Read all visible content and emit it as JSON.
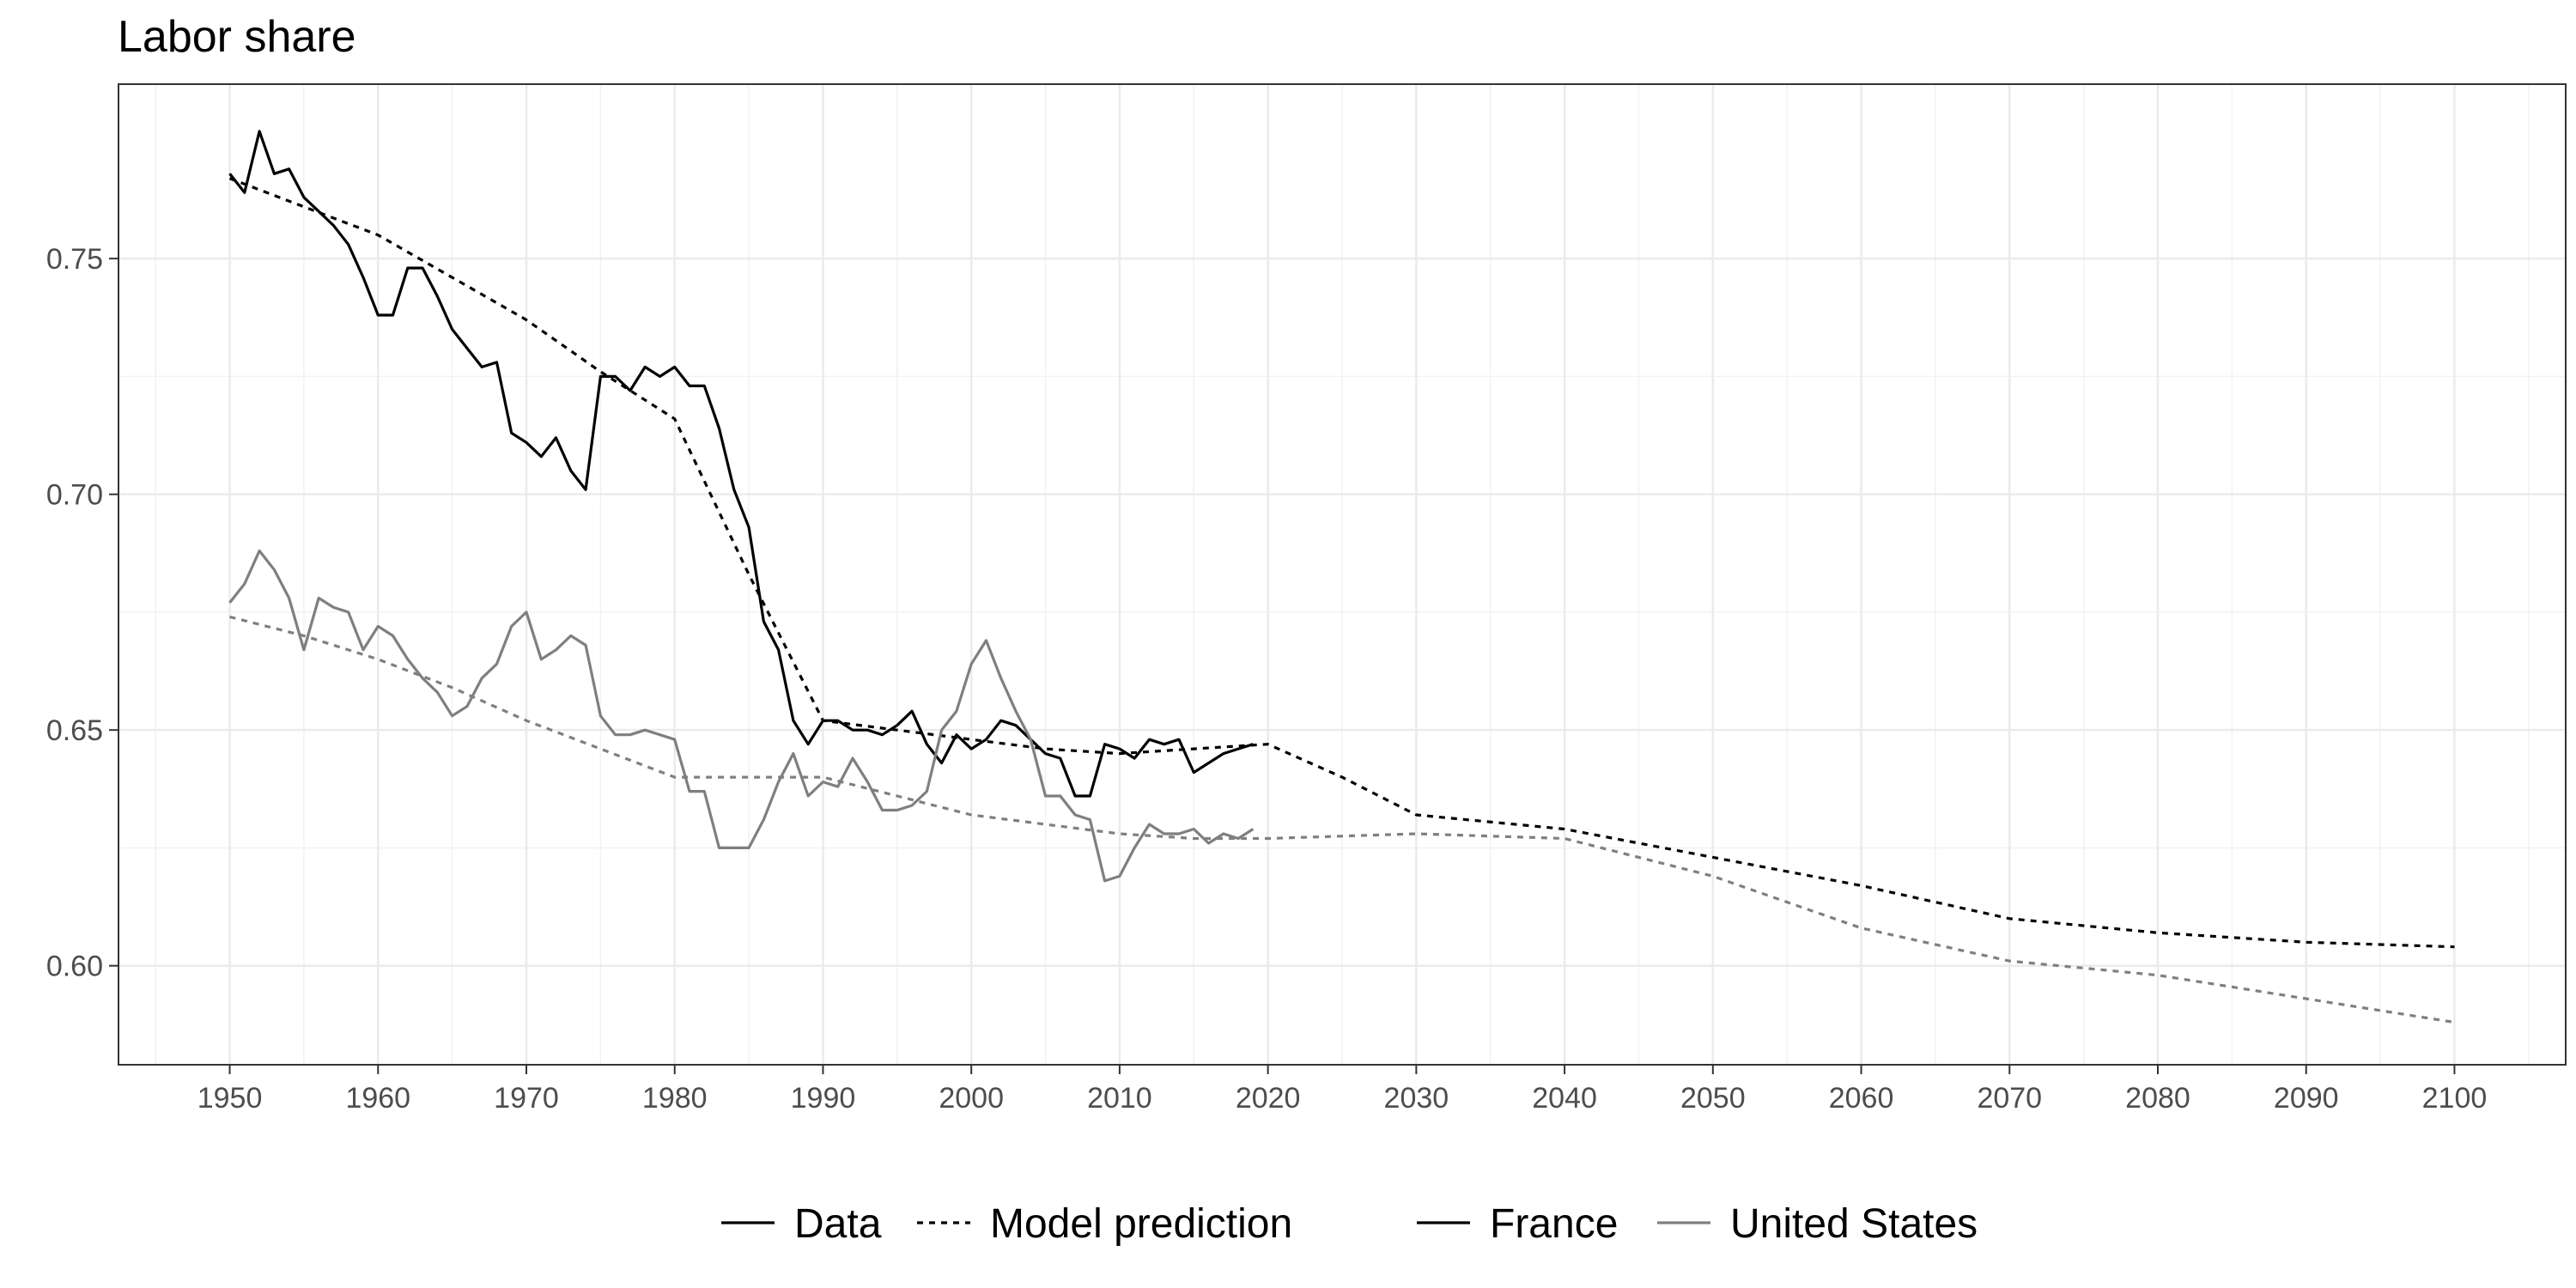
{
  "chart_data": {
    "type": "line",
    "title": "Labor share",
    "xlabel": "",
    "ylabel": "",
    "xlim": [
      1942.5,
      2107.5
    ],
    "ylim": [
      0.579,
      0.787
    ],
    "x_ticks": [
      1950,
      1960,
      1970,
      1980,
      1990,
      2000,
      2010,
      2020,
      2030,
      2040,
      2050,
      2060,
      2070,
      2080,
      2090,
      2100
    ],
    "y_ticks": [
      0.6,
      0.65,
      0.7,
      0.75
    ],
    "y_tick_labels": [
      "0.60",
      "0.65",
      "0.70",
      "0.75"
    ],
    "grid": true,
    "legend_position": "bottom",
    "legend": {
      "linetype": [
        {
          "label": "Data",
          "dash": "solid"
        },
        {
          "label": "Model prediction",
          "dash": "dotted"
        }
      ],
      "country": [
        {
          "label": "France",
          "color": "#000000"
        },
        {
          "label": "United States",
          "color": "#7f7f7f"
        }
      ]
    },
    "colors": {
      "France": "#000000",
      "United States": "#7f7f7f"
    },
    "series": [
      {
        "name": "France",
        "kind": "Data",
        "x": [
          1950,
          1951,
          1952,
          1953,
          1954,
          1955,
          1956,
          1957,
          1958,
          1959,
          1960,
          1961,
          1962,
          1963,
          1964,
          1965,
          1966,
          1967,
          1968,
          1969,
          1970,
          1971,
          1972,
          1973,
          1974,
          1975,
          1976,
          1977,
          1978,
          1979,
          1980,
          1981,
          1982,
          1983,
          1984,
          1985,
          1986,
          1987,
          1988,
          1989,
          1990,
          1991,
          1992,
          1993,
          1994,
          1995,
          1996,
          1997,
          1998,
          1999,
          2000,
          2001,
          2002,
          2003,
          2004,
          2005,
          2006,
          2007,
          2008,
          2009,
          2010,
          2011,
          2012,
          2013,
          2014,
          2015,
          2016,
          2017,
          2018,
          2019
        ],
        "y": [
          0.768,
          0.764,
          0.777,
          0.768,
          0.769,
          0.763,
          0.76,
          0.757,
          0.753,
          0.746,
          0.738,
          0.738,
          0.748,
          0.748,
          0.742,
          0.735,
          0.731,
          0.727,
          0.728,
          0.713,
          0.711,
          0.708,
          0.712,
          0.705,
          0.701,
          0.725,
          0.725,
          0.722,
          0.727,
          0.725,
          0.727,
          0.723,
          0.723,
          0.714,
          0.701,
          0.693,
          0.673,
          0.667,
          0.652,
          0.647,
          0.652,
          0.652,
          0.65,
          0.65,
          0.649,
          0.651,
          0.654,
          0.647,
          0.643,
          0.649,
          0.646,
          0.648,
          0.652,
          0.651,
          0.648,
          0.645,
          0.644,
          0.636,
          0.636,
          0.647,
          0.646,
          0.644,
          0.648,
          0.647,
          0.648,
          0.641,
          0.643,
          0.645,
          0.646,
          0.647
        ]
      },
      {
        "name": "France",
        "kind": "Model prediction",
        "x": [
          1950,
          1955,
          1960,
          1965,
          1970,
          1975,
          1980,
          1985,
          1990,
          1995,
          2000,
          2005,
          2010,
          2015,
          2020,
          2025,
          2030,
          2040,
          2050,
          2060,
          2070,
          2080,
          2090,
          2100
        ],
        "y": [
          0.767,
          0.761,
          0.755,
          0.746,
          0.737,
          0.726,
          0.716,
          0.683,
          0.652,
          0.65,
          0.648,
          0.646,
          0.645,
          0.646,
          0.647,
          0.64,
          0.632,
          0.629,
          0.623,
          0.617,
          0.61,
          0.607,
          0.605,
          0.604
        ]
      },
      {
        "name": "United States",
        "kind": "Data",
        "x": [
          1950,
          1951,
          1952,
          1953,
          1954,
          1955,
          1956,
          1957,
          1958,
          1959,
          1960,
          1961,
          1962,
          1963,
          1964,
          1965,
          1966,
          1967,
          1968,
          1969,
          1970,
          1971,
          1972,
          1973,
          1974,
          1975,
          1976,
          1977,
          1978,
          1979,
          1980,
          1981,
          1982,
          1983,
          1984,
          1985,
          1986,
          1987,
          1988,
          1989,
          1990,
          1991,
          1992,
          1993,
          1994,
          1995,
          1996,
          1997,
          1998,
          1999,
          2000,
          2001,
          2002,
          2003,
          2004,
          2005,
          2006,
          2007,
          2008,
          2009,
          2010,
          2011,
          2012,
          2013,
          2014,
          2015,
          2016,
          2017,
          2018,
          2019
        ],
        "y": [
          0.677,
          0.681,
          0.688,
          0.684,
          0.678,
          0.667,
          0.678,
          0.676,
          0.675,
          0.667,
          0.672,
          0.67,
          0.665,
          0.661,
          0.658,
          0.653,
          0.655,
          0.661,
          0.664,
          0.672,
          0.675,
          0.665,
          0.667,
          0.67,
          0.668,
          0.653,
          0.649,
          0.649,
          0.65,
          0.649,
          0.648,
          0.637,
          0.637,
          0.625,
          0.625,
          0.625,
          0.631,
          0.639,
          0.645,
          0.636,
          0.639,
          0.638,
          0.644,
          0.639,
          0.633,
          0.633,
          0.634,
          0.637,
          0.65,
          0.654,
          0.664,
          0.669,
          0.661,
          0.654,
          0.648,
          0.636,
          0.636,
          0.632,
          0.631,
          0.618,
          0.619,
          0.625,
          0.63,
          0.628,
          0.628,
          0.629,
          0.626,
          0.628,
          0.627,
          0.629
        ]
      },
      {
        "name": "United States",
        "kind": "Model prediction",
        "x": [
          1950,
          1955,
          1960,
          1965,
          1970,
          1975,
          1980,
          1985,
          1990,
          1995,
          2000,
          2005,
          2010,
          2015,
          2020,
          2030,
          2040,
          2050,
          2060,
          2070,
          2080,
          2090,
          2100
        ],
        "y": [
          0.674,
          0.67,
          0.665,
          0.659,
          0.652,
          0.646,
          0.64,
          0.64,
          0.64,
          0.636,
          0.632,
          0.63,
          0.628,
          0.627,
          0.627,
          0.628,
          0.627,
          0.619,
          0.608,
          0.601,
          0.598,
          0.593,
          0.588
        ]
      }
    ]
  }
}
